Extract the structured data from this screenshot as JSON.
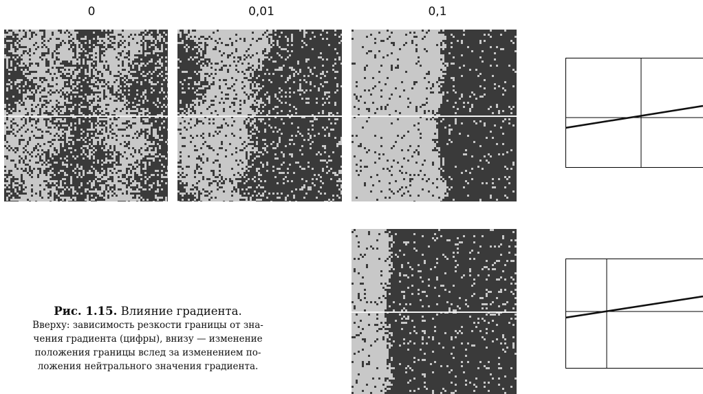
{
  "figure": {
    "labels": [
      "0",
      "0,01",
      "0,1"
    ],
    "caption": {
      "number": "Рис. 1.15.",
      "title": "Влияние градиента.",
      "lines": [
        "Вверху: зависимость резкости границы от зна-",
        "чения градиента (цифры), внизу — изменение",
        "положения границы вслед за изменением по-",
        "ложения нейтрального значения градиента."
      ]
    },
    "colors": {
      "light": "#c8c8c8",
      "dark": "#3a3a3a",
      "divider": "#f4f4f4"
    }
  }
}
